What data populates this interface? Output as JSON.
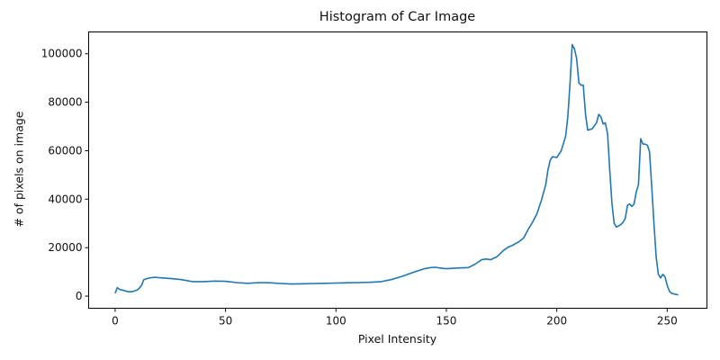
{
  "chart_data": {
    "type": "line",
    "title": "Histogram of Car Image",
    "xlabel": "Pixel Intensity",
    "ylabel": "# of pixels on image",
    "xlim": [
      -12,
      268
    ],
    "ylim": [
      -5000,
      109000
    ],
    "xticks": [
      0,
      50,
      100,
      150,
      200,
      250
    ],
    "yticks": [
      0,
      20000,
      40000,
      60000,
      80000,
      100000
    ],
    "grid": false,
    "legend": null,
    "series": [
      {
        "name": "histogram",
        "color": "#1f77b4",
        "x": [
          0,
          1,
          2,
          4,
          6,
          8,
          10,
          11,
          12,
          13,
          15,
          18,
          20,
          25,
          30,
          35,
          40,
          45,
          50,
          55,
          60,
          65,
          70,
          75,
          80,
          85,
          90,
          95,
          100,
          105,
          110,
          115,
          120,
          125,
          130,
          135,
          140,
          143,
          145,
          148,
          150,
          155,
          160,
          163,
          166,
          168,
          170,
          173,
          176,
          178,
          180,
          183,
          185,
          187,
          189,
          191,
          193,
          195,
          196,
          197,
          198,
          200,
          202,
          204,
          205,
          206,
          207,
          208,
          209,
          210,
          211,
          212,
          213,
          214,
          216,
          218,
          219,
          220,
          221,
          222,
          223,
          224,
          225,
          226,
          227,
          228,
          229,
          230,
          231,
          232,
          233,
          234,
          235,
          236,
          237,
          238,
          239,
          240,
          241,
          242,
          243,
          244,
          245,
          246,
          247,
          248,
          249,
          250,
          251,
          252,
          253,
          254,
          255
        ],
        "y": [
          1200,
          3500,
          2800,
          2300,
          1800,
          1900,
          2500,
          3300,
          4500,
          6800,
          7400,
          7800,
          7600,
          7300,
          6800,
          6000,
          6000,
          6200,
          6100,
          5600,
          5300,
          5600,
          5500,
          5200,
          5000,
          5100,
          5200,
          5300,
          5400,
          5500,
          5600,
          5700,
          5900,
          6800,
          8200,
          9800,
          11300,
          11800,
          11900,
          11500,
          11300,
          11600,
          11800,
          13200,
          15000,
          15300,
          15000,
          16300,
          19000,
          20200,
          21000,
          22500,
          24000,
          27500,
          30500,
          34000,
          39500,
          46000,
          52000,
          56000,
          57500,
          57200,
          60000,
          66000,
          74000,
          88000,
          103800,
          102000,
          98000,
          88000,
          87000,
          87000,
          75000,
          68500,
          69000,
          71500,
          75000,
          74000,
          71000,
          71500,
          67000,
          52000,
          38000,
          30000,
          28500,
          29000,
          29500,
          30500,
          32000,
          37500,
          38000,
          37000,
          38000,
          43000,
          46000,
          65000,
          62800,
          62700,
          62300,
          59500,
          45000,
          30000,
          16000,
          9000,
          7500,
          9000,
          8000,
          4500,
          2000,
          1200,
          900,
          700,
          500
        ]
      }
    ]
  }
}
